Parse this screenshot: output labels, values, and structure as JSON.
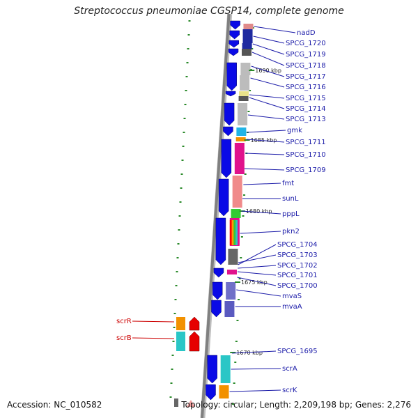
{
  "title": "Streptococcus pneumoniae CGSP14, complete genome",
  "footer": {
    "accession": "Accession: NC_010582",
    "summary": "Topology: circular; Length: 2,209,198 bp; Genes: 2,276"
  },
  "colors": {
    "forward_arrow": "#0a0ae6",
    "reverse_arrow": "#e60000",
    "label_blue": "#1a1aa8",
    "label_red": "#cc0000",
    "backbone": "#808080",
    "gc_tick": "#2a8a2a"
  },
  "scale_marks": [
    "1690 kbp",
    "1685 kbp",
    "1680 kbp",
    "1675 kbp",
    "1670 kbp"
  ],
  "gene_labels": [
    "nadD",
    "SPCG_1720",
    "SPCG_1719",
    "SPCG_1718",
    "SPCG_1717",
    "SPCG_1716",
    "SPCG_1715",
    "SPCG_1714",
    "SPCG_1713",
    "gmk",
    "SPCG_1711",
    "SPCG_1710",
    "SPCG_1709",
    "fmt",
    "sunL",
    "pppL",
    "pkn2",
    "SPCG_1704",
    "SPCG_1703",
    "SPCG_1702",
    "SPCG_1701",
    "SPCG_1700",
    "mvaS",
    "mvaA",
    "SPCG_1695",
    "scrA",
    "scrK"
  ],
  "reverse_labels": [
    "scrR",
    "scrB"
  ]
}
